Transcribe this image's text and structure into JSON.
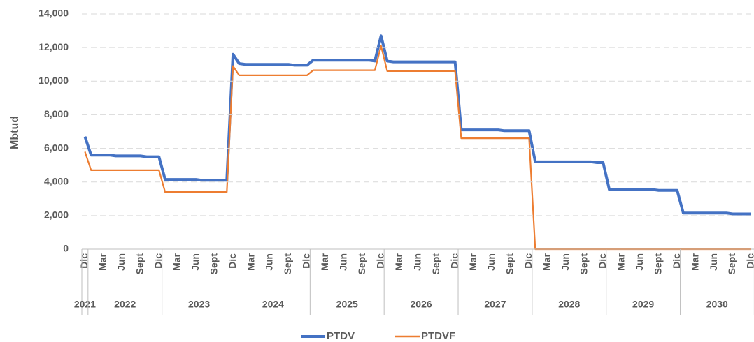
{
  "chart_data": {
    "type": "line",
    "y_label": "Mbtud",
    "categories": [
      "Dic",
      null,
      null,
      "Mar",
      null,
      null,
      "Jun",
      null,
      null,
      "Sept",
      null,
      null,
      "Dic",
      null,
      null,
      "Mar",
      null,
      null,
      "Jun",
      null,
      null,
      "Sept",
      null,
      null,
      "Dic",
      null,
      null,
      "Mar",
      null,
      null,
      "Jun",
      null,
      null,
      "Sept",
      null,
      null,
      "Dic",
      null,
      null,
      "Mar",
      null,
      null,
      "Jun",
      null,
      null,
      "Sept",
      null,
      null,
      "Dic",
      null,
      null,
      "Mar",
      null,
      null,
      "Jun",
      null,
      null,
      "Sept",
      null,
      null,
      "Dic",
      null,
      null,
      "Mar",
      null,
      null,
      "Jun",
      null,
      null,
      "Sept",
      null,
      null,
      "Dic",
      null,
      null,
      "Mar",
      null,
      null,
      "Jun",
      null,
      null,
      "Sept",
      null,
      null,
      "Dic",
      null,
      null,
      "Mar",
      null,
      null,
      "Jun",
      null,
      null,
      "Sept",
      null,
      null,
      "Dic",
      null,
      null,
      "Mar",
      null,
      null,
      "Jun",
      null,
      null,
      "Sept",
      null,
      null,
      "Dic"
    ],
    "year_groups": [
      {
        "label": "2021",
        "months": 1
      },
      {
        "label": "2022",
        "months": 12
      },
      {
        "label": "2023",
        "months": 12
      },
      {
        "label": "2024",
        "months": 12
      },
      {
        "label": "2025",
        "months": 12
      },
      {
        "label": "2026",
        "months": 12
      },
      {
        "label": "2027",
        "months": 12
      },
      {
        "label": "2028",
        "months": 12
      },
      {
        "label": "2029",
        "months": 12
      },
      {
        "label": "2030",
        "months": 12
      }
    ],
    "series": [
      {
        "name": "PTDV",
        "color": "#4472c4",
        "values": [
          6700,
          5600,
          5600,
          5600,
          5600,
          5550,
          5550,
          5550,
          5550,
          5550,
          5500,
          5500,
          5500,
          4150,
          4150,
          4150,
          4150,
          4150,
          4150,
          4100,
          4100,
          4100,
          4100,
          4100,
          11600,
          11050,
          11000,
          11000,
          11000,
          11000,
          11000,
          11000,
          11000,
          11000,
          10950,
          10950,
          10950,
          11250,
          11250,
          11250,
          11250,
          11250,
          11250,
          11250,
          11250,
          11250,
          11250,
          11200,
          12700,
          11200,
          11150,
          11150,
          11150,
          11150,
          11150,
          11150,
          11150,
          11150,
          11150,
          11150,
          11150,
          7100,
          7100,
          7100,
          7100,
          7100,
          7100,
          7100,
          7050,
          7050,
          7050,
          7050,
          7050,
          5200,
          5200,
          5200,
          5200,
          5200,
          5200,
          5200,
          5200,
          5200,
          5200,
          5150,
          5150,
          3550,
          3550,
          3550,
          3550,
          3550,
          3550,
          3550,
          3550,
          3500,
          3500,
          3500,
          3500,
          2150,
          2150,
          2150,
          2150,
          2150,
          2150,
          2150,
          2150,
          2100,
          2100,
          2100,
          2100
        ]
      },
      {
        "name": "PTDVF",
        "color": "#ed7d31",
        "values": [
          5800,
          4700,
          4700,
          4700,
          4700,
          4700,
          4700,
          4700,
          4700,
          4700,
          4700,
          4700,
          4700,
          3400,
          3400,
          3400,
          3400,
          3400,
          3400,
          3400,
          3400,
          3400,
          3400,
          3400,
          10900,
          10350,
          10350,
          10350,
          10350,
          10350,
          10350,
          10350,
          10350,
          10350,
          10350,
          10350,
          10350,
          10650,
          10650,
          10650,
          10650,
          10650,
          10650,
          10650,
          10650,
          10650,
          10650,
          10650,
          12100,
          10600,
          10600,
          10600,
          10600,
          10600,
          10600,
          10600,
          10600,
          10600,
          10600,
          10600,
          10600,
          6600,
          6600,
          6600,
          6600,
          6600,
          6600,
          6600,
          6600,
          6600,
          6600,
          6600,
          6600,
          0,
          0,
          0,
          0,
          0,
          0,
          0,
          0,
          0,
          0,
          0,
          0,
          0,
          0,
          0,
          0,
          0,
          0,
          0,
          0,
          0,
          0,
          0,
          0,
          0,
          0,
          0,
          0,
          0,
          0,
          0,
          0,
          0,
          0,
          0,
          0
        ]
      }
    ],
    "ylim": [
      0,
      14000
    ],
    "yticks": [
      0,
      {
        "value": 2000,
        "label": "2,000"
      },
      {
        "value": 4000,
        "label": "4,000"
      },
      {
        "value": 6000,
        "label": "6,000"
      },
      {
        "value": 8000,
        "label": "8,000"
      },
      {
        "value": 10000,
        "label": "10,000"
      },
      {
        "value": 12000,
        "label": "12,000"
      },
      {
        "value": 14000,
        "label": "14,000"
      }
    ],
    "grid": true,
    "legend": "bottom"
  }
}
